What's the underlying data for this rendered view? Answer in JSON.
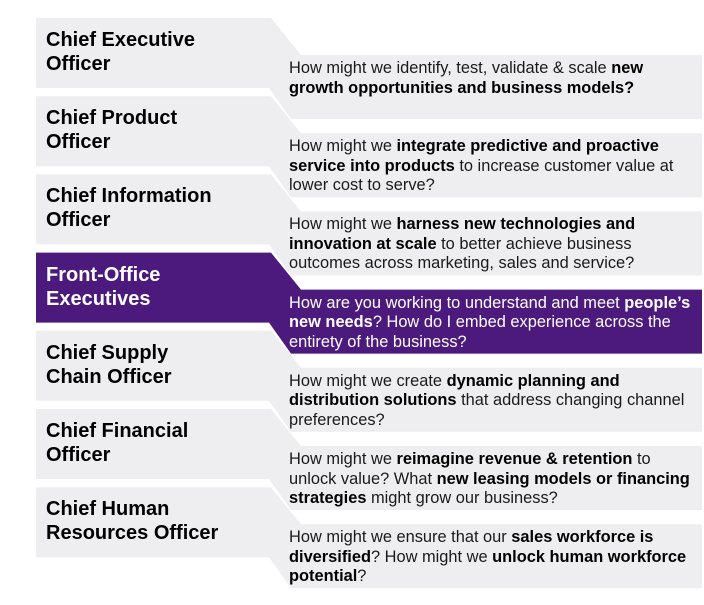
{
  "colors": {
    "gray": "#eeeef0",
    "accent": "#4b1a7c",
    "text": "#1a1a1a"
  },
  "rows": [
    {
      "role": [
        "Chief Executive",
        "Officer"
      ],
      "question": [
        {
          "t": "How might we identify, test, validate & scale "
        },
        {
          "t": "new growth opportunities and business models?",
          "b": true
        }
      ],
      "active": false
    },
    {
      "role": [
        "Chief Product",
        "Officer"
      ],
      "question": [
        {
          "t": "How might we "
        },
        {
          "t": "integrate predictive and proactive service into products",
          "b": true
        },
        {
          "t": " to increase customer value at lower cost to serve?"
        }
      ],
      "active": false
    },
    {
      "role": [
        "Chief Information",
        "Officer"
      ],
      "question": [
        {
          "t": "How might we "
        },
        {
          "t": "harness new technologies and innovation at scale",
          "b": true
        },
        {
          "t": " to better achieve business outcomes across marketing, sales and service?"
        }
      ],
      "active": false
    },
    {
      "role": [
        "Front-Office",
        "Executives"
      ],
      "question": [
        {
          "t": "How are you working to understand and meet "
        },
        {
          "t": "people’s new needs",
          "b": true
        },
        {
          "t": "? How do I embed experience across the entirety of the business?"
        }
      ],
      "active": true
    },
    {
      "role": [
        "Chief Supply",
        "Chain Officer"
      ],
      "question": [
        {
          "t": "How might we create "
        },
        {
          "t": "dynamic planning and distribution solutions",
          "b": true
        },
        {
          "t": " that address changing channel preferences?"
        }
      ],
      "active": false
    },
    {
      "role": [
        "Chief Financial",
        "Officer"
      ],
      "question": [
        {
          "t": "How might we "
        },
        {
          "t": "reimagine revenue & retention",
          "b": true
        },
        {
          "t": " to unlock value? What "
        },
        {
          "t": "new leasing models or financing strategies",
          "b": true
        },
        {
          "t": " might grow our business?"
        }
      ],
      "active": false
    },
    {
      "role": [
        "Chief Human",
        "Resources Officer"
      ],
      "question": [
        {
          "t": "How might we ensure that our "
        },
        {
          "t": "sales workforce is diversified",
          "b": true
        },
        {
          "t": "? How might we "
        },
        {
          "t": "unlock human workforce potential",
          "b": true
        },
        {
          "t": "?"
        }
      ],
      "active": false
    }
  ]
}
